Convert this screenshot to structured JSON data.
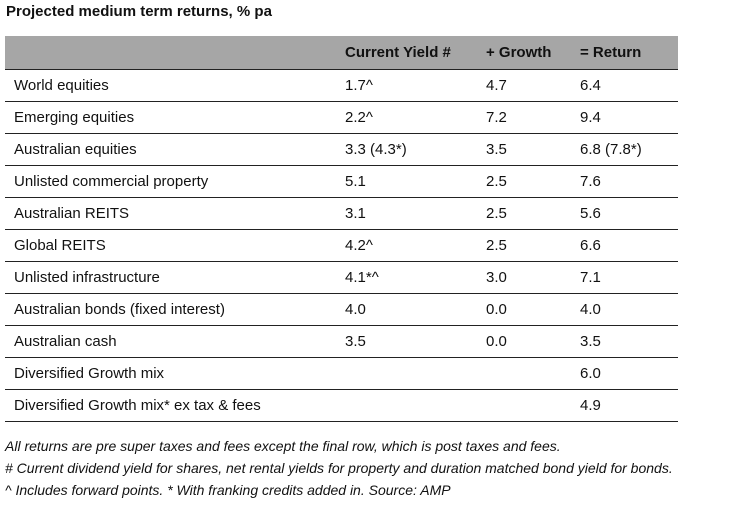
{
  "title": "Projected medium term returns, % pa",
  "table": {
    "headers": [
      "",
      "Current Yield #",
      "+ Growth",
      "= Return"
    ],
    "rows": [
      [
        "World equities",
        "1.7^",
        "4.7",
        "6.4"
      ],
      [
        "Emerging equities",
        "2.2^",
        "7.2",
        "9.4"
      ],
      [
        "Australian equities",
        "3.3 (4.3*)",
        "3.5",
        "6.8 (7.8*)"
      ],
      [
        "Unlisted commercial property",
        "5.1",
        "2.5",
        "7.6"
      ],
      [
        "Australian REITS",
        "3.1",
        "2.5",
        "5.6"
      ],
      [
        "Global REITS",
        "4.2^",
        "2.5",
        "6.6"
      ],
      [
        "Unlisted infrastructure",
        "4.1*^",
        "3.0",
        "7.1"
      ],
      [
        "Australian bonds (fixed interest)",
        "4.0",
        "0.0",
        "4.0"
      ],
      [
        "Australian cash",
        "3.5",
        "0.0",
        "3.5"
      ],
      [
        "Diversified Growth mix",
        "",
        "",
        "6.0"
      ],
      [
        "Diversified Growth mix* ex tax & fees",
        "",
        "",
        "4.9"
      ]
    ]
  },
  "notes": [
    "All returns are pre super taxes and fees except the final row, which is post taxes and fees.",
    "# Current dividend yield for shares, net rental yields for property and duration matched bond yield for bonds.",
    "^ Includes forward points. * With franking credits added in. Source: AMP"
  ]
}
